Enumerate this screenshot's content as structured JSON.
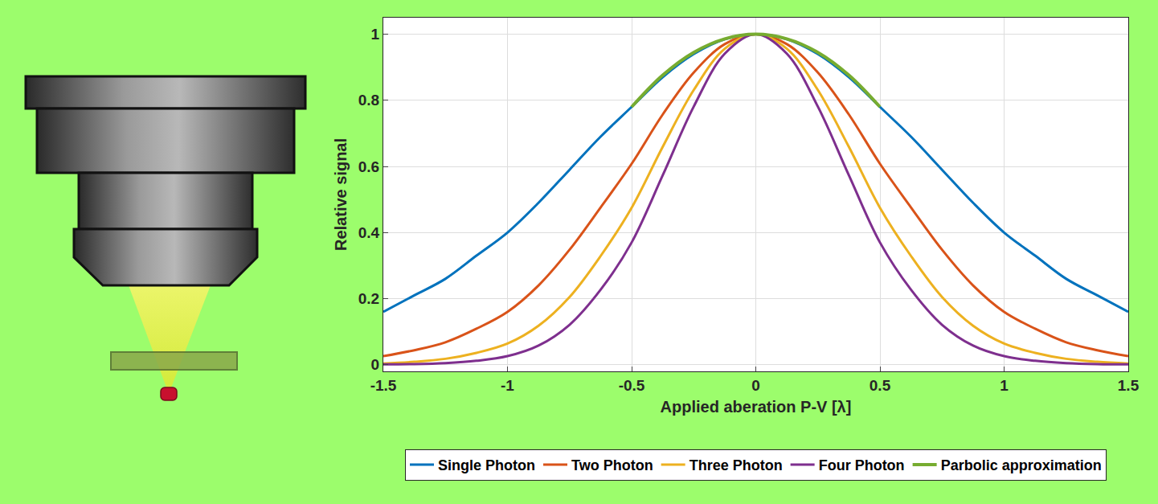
{
  "chart_data": {
    "type": "line",
    "x_label": "Applied aberation P-V [λ]",
    "y_label": "Relative signal",
    "xlim": [
      -1.5,
      1.5
    ],
    "ylim": [
      -0.02,
      1.05
    ],
    "xticks": [
      -1.5,
      -1,
      -0.5,
      0,
      0.5,
      1,
      1.5
    ],
    "yticks": [
      0,
      0.2,
      0.4,
      0.6,
      0.8,
      1
    ],
    "grid": true,
    "legend": "bottom",
    "series": [
      {
        "name": "Single Photon",
        "color": "#0072BD",
        "x": [
          -1.5,
          -1.375,
          -1.25,
          -1.125,
          -1,
          -0.875,
          -0.75,
          -0.625,
          -0.5,
          -0.375,
          -0.25,
          -0.125,
          0,
          0.125,
          0.25,
          0.375,
          0.5,
          0.625,
          0.75,
          0.875,
          1,
          1.125,
          1.25,
          1.375,
          1.5
        ],
        "values": [
          0.16,
          0.21,
          0.26,
          0.33,
          0.4,
          0.49,
          0.59,
          0.69,
          0.78,
          0.87,
          0.94,
          0.985,
          1,
          0.985,
          0.94,
          0.87,
          0.78,
          0.69,
          0.59,
          0.49,
          0.4,
          0.33,
          0.26,
          0.21,
          0.16
        ]
      },
      {
        "name": "Two Photon",
        "color": "#D95319",
        "x": [
          -1.5,
          -1.375,
          -1.25,
          -1.125,
          -1,
          -0.875,
          -0.75,
          -0.625,
          -0.5,
          -0.375,
          -0.25,
          -0.125,
          0,
          0.125,
          0.25,
          0.375,
          0.5,
          0.625,
          0.75,
          0.875,
          1,
          1.125,
          1.25,
          1.375,
          1.5
        ],
        "values": [
          0.026,
          0.044,
          0.068,
          0.109,
          0.16,
          0.24,
          0.348,
          0.476,
          0.608,
          0.757,
          0.884,
          0.97,
          1,
          0.97,
          0.884,
          0.757,
          0.608,
          0.476,
          0.348,
          0.24,
          0.16,
          0.109,
          0.068,
          0.044,
          0.026
        ]
      },
      {
        "name": "Three Photon",
        "color": "#EDB120",
        "x": [
          -1.5,
          -1.375,
          -1.25,
          -1.125,
          -1,
          -0.875,
          -0.75,
          -0.625,
          -0.5,
          -0.375,
          -0.25,
          -0.125,
          0,
          0.125,
          0.25,
          0.375,
          0.5,
          0.625,
          0.75,
          0.875,
          1,
          1.125,
          1.25,
          1.375,
          1.5
        ],
        "values": [
          0.004,
          0.009,
          0.018,
          0.036,
          0.064,
          0.118,
          0.205,
          0.329,
          0.475,
          0.659,
          0.831,
          0.956,
          1,
          0.956,
          0.831,
          0.659,
          0.475,
          0.329,
          0.205,
          0.118,
          0.064,
          0.036,
          0.018,
          0.009,
          0.004
        ]
      },
      {
        "name": "Four Photon",
        "color": "#7E2F8E",
        "x": [
          -1.5,
          -1.375,
          -1.25,
          -1.125,
          -1,
          -0.875,
          -0.75,
          -0.625,
          -0.5,
          -0.375,
          -0.25,
          -0.125,
          0,
          0.125,
          0.25,
          0.375,
          0.5,
          0.625,
          0.75,
          0.875,
          1,
          1.125,
          1.25,
          1.375,
          1.5
        ],
        "values": [
          0.001,
          0.002,
          0.005,
          0.012,
          0.026,
          0.058,
          0.121,
          0.227,
          0.37,
          0.573,
          0.781,
          0.941,
          1,
          0.941,
          0.781,
          0.573,
          0.37,
          0.227,
          0.121,
          0.058,
          0.026,
          0.012,
          0.005,
          0.002,
          0.001
        ]
      },
      {
        "name": "Parbolic approximation",
        "color": "#77AC30",
        "x": [
          -0.5,
          -0.375,
          -0.25,
          -0.125,
          0,
          0.125,
          0.25,
          0.375,
          0.5
        ],
        "values": [
          0.78,
          0.876,
          0.945,
          0.986,
          1,
          0.986,
          0.945,
          0.876,
          0.78
        ]
      }
    ]
  }
}
